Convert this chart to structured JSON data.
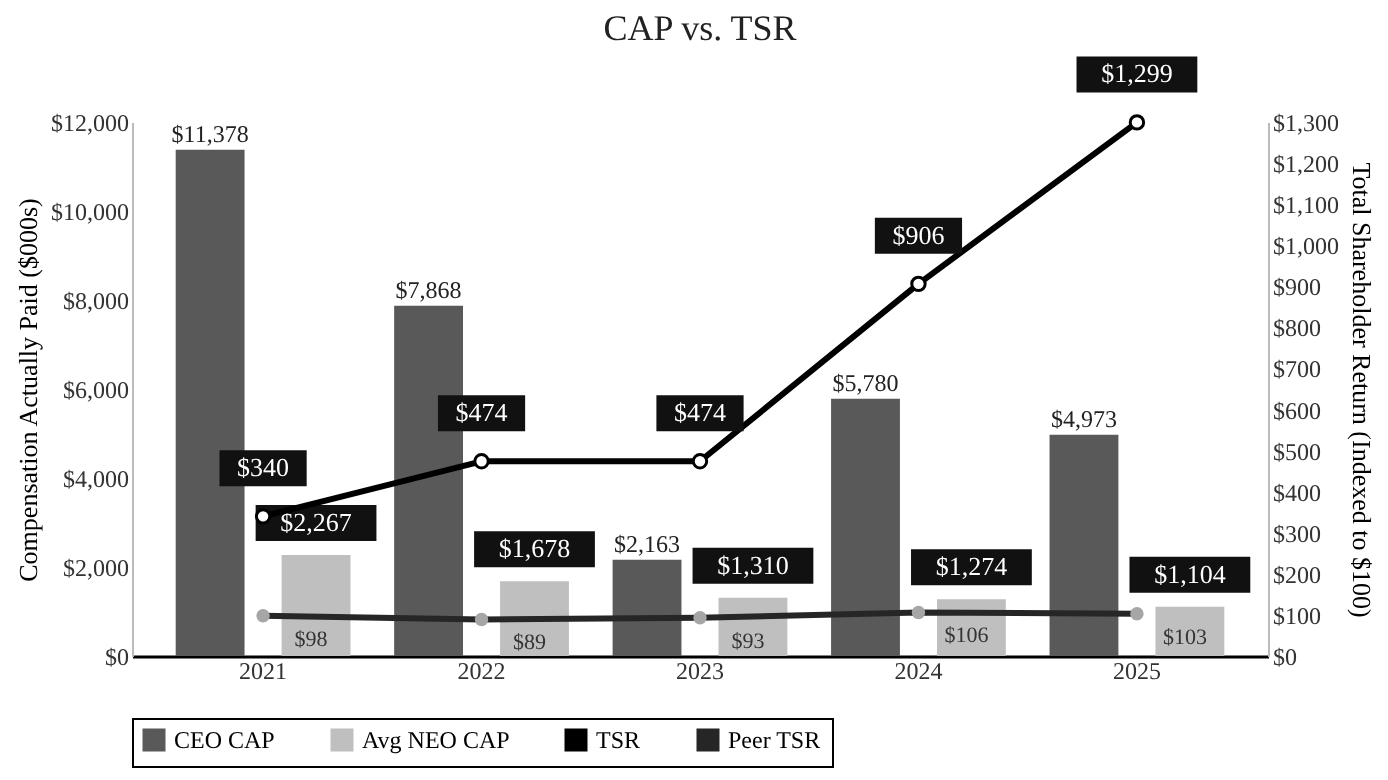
{
  "chart_data": {
    "type": "bar",
    "title": "CAP vs. TSR",
    "ylabel": "Compensation Actually Paid ($000s)",
    "y2label": "Total Shareholder Return (Indexed to $100)",
    "categories": [
      "2021",
      "2022",
      "2023",
      "2024",
      "2025"
    ],
    "series": [
      {
        "name": "CEO CAP",
        "type": "bar",
        "color": "#595959",
        "values": [
          11378,
          7868,
          2163,
          5780,
          4973
        ],
        "value_labels": [
          "$11,378",
          "$7,868",
          "$2,163",
          "$5,780",
          "$4,973"
        ]
      },
      {
        "name": "Avg NEO CAP",
        "type": "bar",
        "color": "#bfbfbf",
        "values": [
          2267,
          1678,
          1310,
          1274,
          1104
        ],
        "value_labels": [
          "$2,267",
          "$1,678",
          "$1,310",
          "$1,274",
          "$1,104"
        ]
      },
      {
        "name": "TSR",
        "type": "line",
        "axis": "y2",
        "color": "#000000",
        "marker": "circle",
        "values": [
          340,
          474,
          474,
          906,
          1299
        ],
        "value_labels": [
          "$340",
          "$474",
          "$474",
          "$906",
          "$1,299"
        ]
      },
      {
        "name": "Peer TSR",
        "type": "line",
        "axis": "y2",
        "color": "#262626",
        "marker": "circle",
        "values": [
          98,
          89,
          93,
          106,
          103
        ],
        "value_labels": [
          "$98",
          "$89",
          "$93",
          "$106",
          "$103"
        ]
      }
    ],
    "ylim": [
      0,
      12000
    ],
    "yticks": [
      {
        "value": 0,
        "label": "$0"
      },
      {
        "value": 2000,
        "label": "$2,000"
      },
      {
        "value": 4000,
        "label": "$4,000"
      },
      {
        "value": 6000,
        "label": "$6,000"
      },
      {
        "value": 8000,
        "label": "$8,000"
      },
      {
        "value": 10000,
        "label": "$10,000"
      },
      {
        "value": 12000,
        "label": "$12,000"
      }
    ],
    "y2lim": [
      0,
      1300
    ],
    "y2ticks": [
      {
        "value": 0,
        "label": "$0"
      },
      {
        "value": 100,
        "label": "$100"
      },
      {
        "value": 200,
        "label": "$200"
      },
      {
        "value": 300,
        "label": "$300"
      },
      {
        "value": 400,
        "label": "$400"
      },
      {
        "value": 500,
        "label": "$500"
      },
      {
        "value": 600,
        "label": "$600"
      },
      {
        "value": 700,
        "label": "$700"
      },
      {
        "value": 800,
        "label": "$800"
      },
      {
        "value": 900,
        "label": "$900"
      },
      {
        "value": 1000,
        "label": "$1,000"
      },
      {
        "value": 1100,
        "label": "$1,100"
      },
      {
        "value": 1200,
        "label": "$1,200"
      },
      {
        "value": 1300,
        "label": "$1,300"
      }
    ],
    "legend": "bottom",
    "grid": false
  }
}
